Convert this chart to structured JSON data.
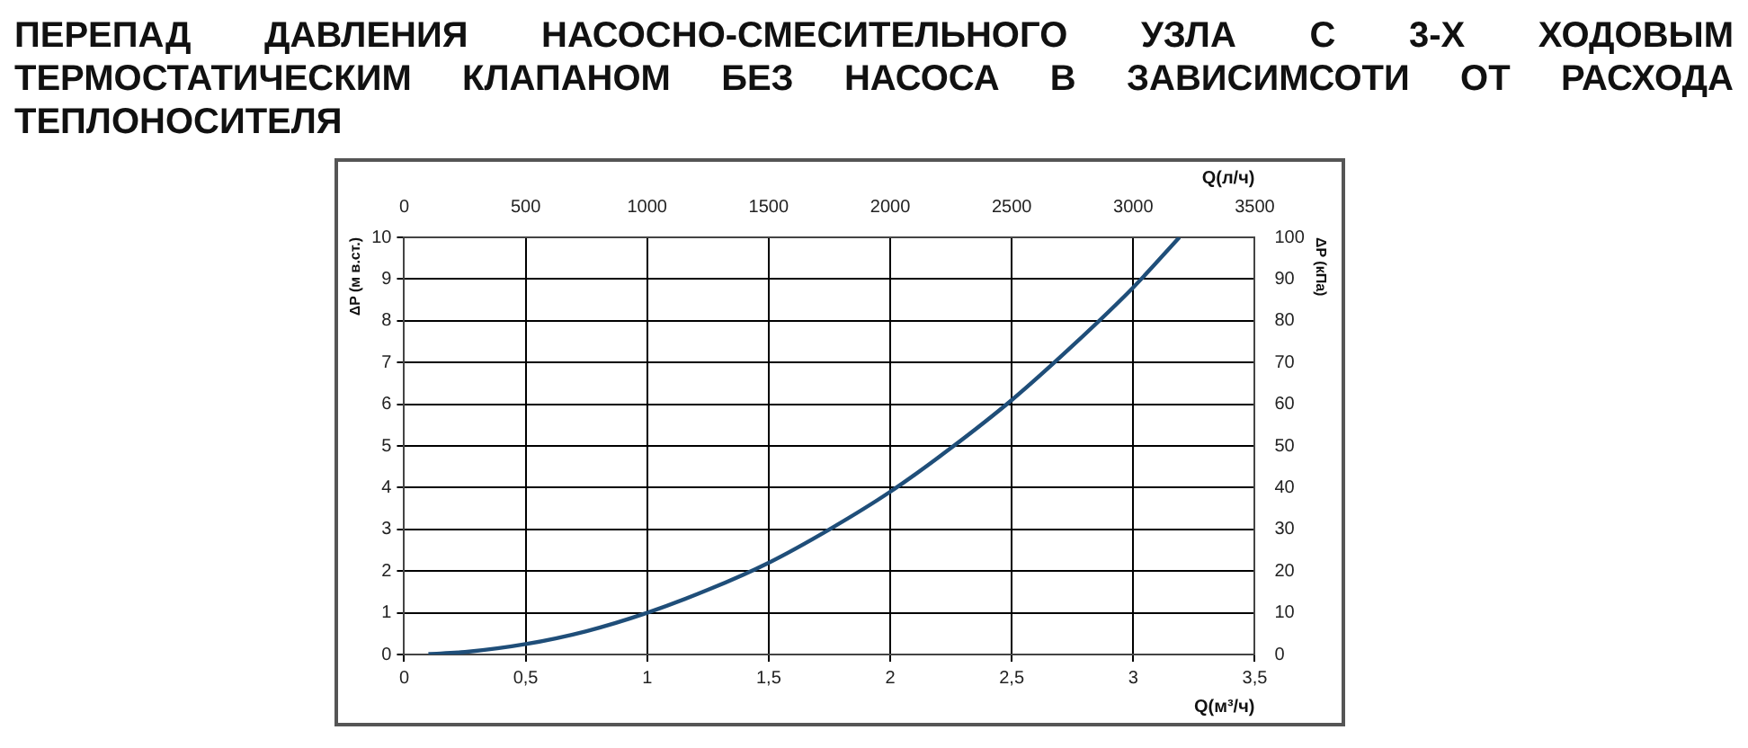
{
  "chart_data": {
    "type": "line",
    "title": "ПЕРЕПАД ДАВЛЕНИЯ НАСОСНО-СМЕСИТЕЛЬНОГО УЗЛА С 3-Х ХОДОВЫМ ТЕРМОСТАТИЧЕСКИМ КЛАПАНОМ БЕЗ НАСОСА В ЗАВИСИМСОТИ ОТ РАСХОДА ТЕПЛОНОСИТЕЛЯ",
    "xlabel": "Q(м³/ч)",
    "x2label": "Q(л/ч)",
    "ylabel": "ΔP (м в.ст.)",
    "y2label": "ΔP (кПа)",
    "x": [
      0.1,
      0.25,
      0.5,
      0.75,
      1,
      1.25,
      1.5,
      1.75,
      2,
      2.25,
      2.5,
      2.75,
      3,
      3.19
    ],
    "series": [
      {
        "color": "#1f4e79",
        "values": [
          0.01,
          0.06,
          0.25,
          0.56,
          1.0,
          1.55,
          2.2,
          3.0,
          3.9,
          4.95,
          6.1,
          7.4,
          8.8,
          10
        ]
      }
    ],
    "xlim": [
      0,
      3.5
    ],
    "xticks": [
      0,
      {
        "value": 0.5,
        "label": "0,5"
      },
      1,
      {
        "value": 1.5,
        "label": "1,5"
      },
      2,
      {
        "value": 2.5,
        "label": "2,5"
      },
      3,
      {
        "value": 3.5,
        "label": "3,5"
      }
    ],
    "x2lim": [
      0,
      3500
    ],
    "x2ticks": [
      0,
      500,
      1000,
      1500,
      2000,
      2500,
      3000,
      3500
    ],
    "ylim": [
      0,
      10
    ],
    "yticks": [
      0,
      1,
      2,
      3,
      4,
      5,
      6,
      7,
      8,
      9,
      10
    ],
    "y2lim": [
      0,
      100
    ],
    "y2ticks": [
      0,
      10,
      20,
      30,
      40,
      50,
      60,
      70,
      80,
      90,
      100
    ],
    "grid": true,
    "marker": "none",
    "line_style": "solid",
    "legend": false
  }
}
